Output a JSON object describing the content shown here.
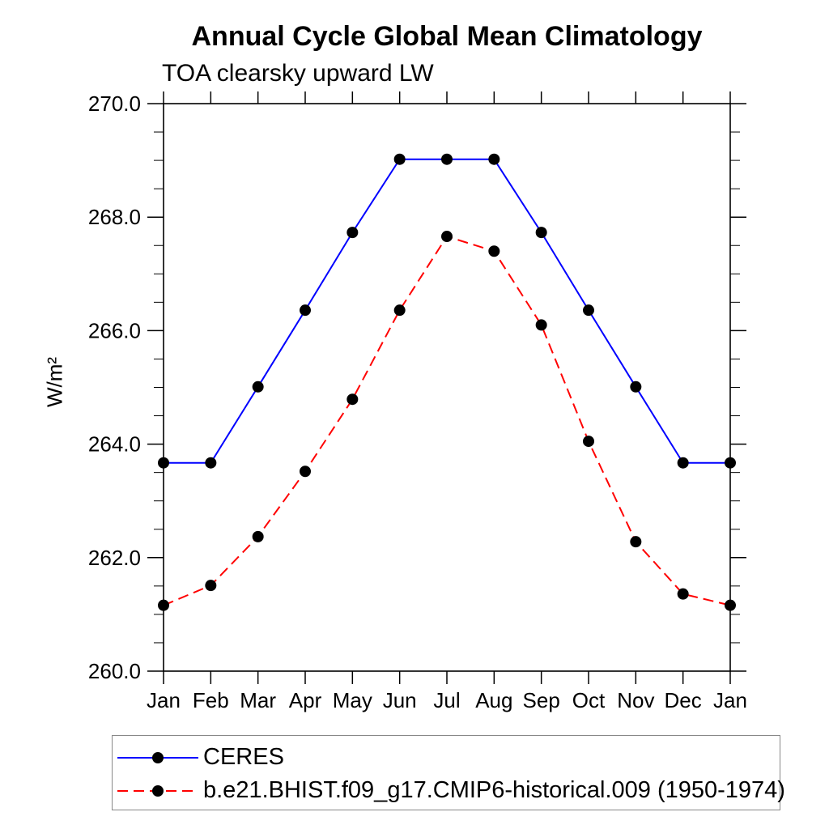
{
  "header": {
    "title": "Annual Cycle Global Mean Climatology",
    "subtitle": "TOA clearsky upward LW"
  },
  "chart_data": {
    "type": "line",
    "title": "Annual Cycle Global Mean Climatology",
    "subtitle": "TOA clearsky upward LW",
    "xlabel": "",
    "ylabel": "W/m²",
    "x_categories": [
      "Jan",
      "Feb",
      "Mar",
      "Apr",
      "May",
      "Jun",
      "Jul",
      "Aug",
      "Sep",
      "Oct",
      "Nov",
      "Dec",
      "Jan"
    ],
    "ylim": [
      260.0,
      270.0
    ],
    "y_major_step": 2.0,
    "y_minor_step": 0.5,
    "y_tick_labels": [
      "260.0",
      "262.0",
      "264.0",
      "266.0",
      "268.0",
      "270.0"
    ],
    "grid": false,
    "legend_position": "bottom-left",
    "axis_color": "#000000",
    "series": [
      {
        "name": "CERES",
        "color": "#0000ff",
        "line_style": "solid",
        "marker": "circle",
        "marker_color": "#000000",
        "values": [
          263.67,
          263.67,
          265.01,
          266.36,
          267.73,
          269.02,
          269.02,
          269.02,
          267.73,
          266.36,
          265.01,
          263.67,
          263.67
        ]
      },
      {
        "name": "b.e21.BHIST.f09_g17.CMIP6-historical.009 (1950-1974)",
        "color": "#ff0000",
        "line_style": "dashed",
        "marker": "circle",
        "marker_color": "#000000",
        "values": [
          261.16,
          261.51,
          262.37,
          263.52,
          264.79,
          266.36,
          267.66,
          267.4,
          266.1,
          264.05,
          262.28,
          261.36,
          261.16
        ]
      }
    ]
  }
}
